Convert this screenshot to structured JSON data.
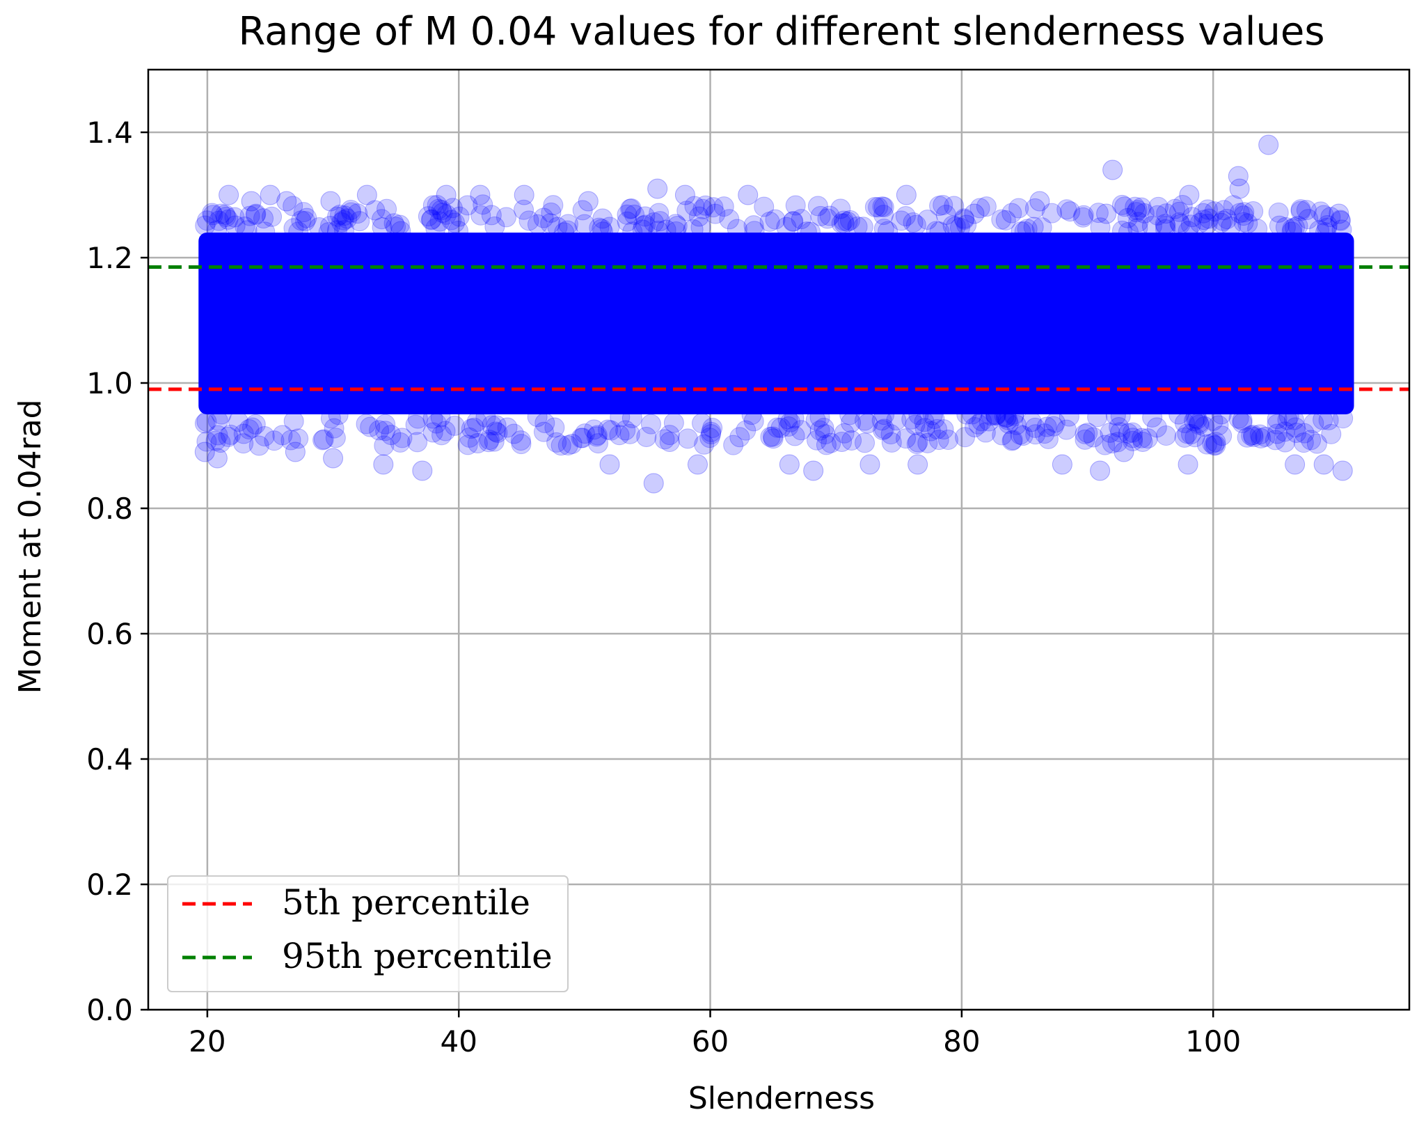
{
  "chart_data": {
    "type": "scatter",
    "title": "Range of M 0.04 values for different slenderness values",
    "xlabel": "Slenderness",
    "ylabel": "Moment at 0.04rad",
    "xlim": [
      15.3,
      115.6
    ],
    "ylim": [
      0.0,
      1.5
    ],
    "xticks": [
      20,
      40,
      60,
      80,
      100
    ],
    "yticks": [
      0.0,
      0.2,
      0.4,
      0.6,
      0.8,
      1.0,
      1.2,
      1.4
    ],
    "xtick_labels": [
      "20",
      "40",
      "60",
      "80",
      "100"
    ],
    "ytick_labels": [
      "0.0",
      "0.2",
      "0.4",
      "0.6",
      "0.8",
      "1.0",
      "1.2",
      "1.4"
    ],
    "grid": true,
    "colors": {
      "points": "#0000ff",
      "p5": "#ff0000",
      "p95": "#008000",
      "grid": "#b0b0b0"
    },
    "scatter_summary": {
      "x_range": [
        19.3,
        111.2
      ],
      "dense_band": [
        0.95,
        1.24
      ],
      "outliers": [
        {
          "x": 19.8,
          "y": 0.89
        },
        {
          "x": 20.8,
          "y": 0.88
        },
        {
          "x": 21.7,
          "y": 1.3
        },
        {
          "x": 23.5,
          "y": 1.29
        },
        {
          "x": 25.0,
          "y": 1.3
        },
        {
          "x": 26.3,
          "y": 1.29
        },
        {
          "x": 27.0,
          "y": 0.89
        },
        {
          "x": 29.8,
          "y": 1.29
        },
        {
          "x": 30.0,
          "y": 0.88
        },
        {
          "x": 32.7,
          "y": 1.3
        },
        {
          "x": 34.0,
          "y": 0.87
        },
        {
          "x": 37.1,
          "y": 0.86
        },
        {
          "x": 39.0,
          "y": 1.3
        },
        {
          "x": 41.7,
          "y": 1.3
        },
        {
          "x": 45.2,
          "y": 1.3
        },
        {
          "x": 50.3,
          "y": 1.29
        },
        {
          "x": 52.0,
          "y": 0.87
        },
        {
          "x": 55.5,
          "y": 0.84
        },
        {
          "x": 55.8,
          "y": 1.31
        },
        {
          "x": 58.0,
          "y": 1.3
        },
        {
          "x": 59.0,
          "y": 0.87
        },
        {
          "x": 63.0,
          "y": 1.3
        },
        {
          "x": 66.3,
          "y": 0.87
        },
        {
          "x": 68.2,
          "y": 0.86
        },
        {
          "x": 72.7,
          "y": 0.87
        },
        {
          "x": 75.6,
          "y": 1.3
        },
        {
          "x": 76.5,
          "y": 0.87
        },
        {
          "x": 81.0,
          "y": 1.27
        },
        {
          "x": 86.2,
          "y": 1.29
        },
        {
          "x": 88.0,
          "y": 0.87
        },
        {
          "x": 91.0,
          "y": 0.86
        },
        {
          "x": 91.5,
          "y": 1.27
        },
        {
          "x": 92.0,
          "y": 1.34
        },
        {
          "x": 92.9,
          "y": 0.89
        },
        {
          "x": 98.0,
          "y": 0.87
        },
        {
          "x": 98.1,
          "y": 1.3
        },
        {
          "x": 102.0,
          "y": 1.33
        },
        {
          "x": 102.1,
          "y": 1.31
        },
        {
          "x": 104.4,
          "y": 1.38
        },
        {
          "x": 106.5,
          "y": 0.87
        },
        {
          "x": 108.8,
          "y": 0.87
        },
        {
          "x": 110.3,
          "y": 0.86
        },
        {
          "x": 110.0,
          "y": 1.27
        }
      ]
    },
    "series": [
      {
        "name": "5th percentile",
        "type": "hline",
        "y": 0.99,
        "style": "dashed",
        "color": "#ff0000"
      },
      {
        "name": "95th percentile",
        "type": "hline",
        "y": 1.185,
        "style": "dashed",
        "color": "#008000"
      }
    ],
    "legend": {
      "position": "lower-left",
      "entries": [
        {
          "label": "5th percentile",
          "color": "#ff0000"
        },
        {
          "label": "95th percentile",
          "color": "#008000"
        }
      ]
    }
  }
}
